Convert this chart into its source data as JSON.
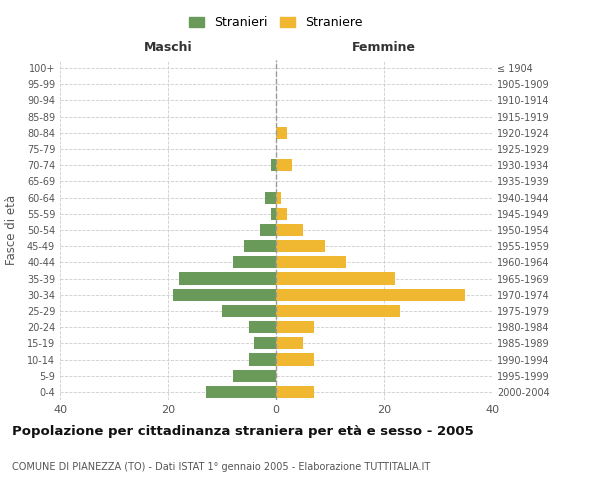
{
  "age_groups": [
    "100+",
    "95-99",
    "90-94",
    "85-89",
    "80-84",
    "75-79",
    "70-74",
    "65-69",
    "60-64",
    "55-59",
    "50-54",
    "45-49",
    "40-44",
    "35-39",
    "30-34",
    "25-29",
    "20-24",
    "15-19",
    "10-14",
    "5-9",
    "0-4"
  ],
  "birth_years": [
    "≤ 1904",
    "1905-1909",
    "1910-1914",
    "1915-1919",
    "1920-1924",
    "1925-1929",
    "1930-1934",
    "1935-1939",
    "1940-1944",
    "1945-1949",
    "1950-1954",
    "1955-1959",
    "1960-1964",
    "1965-1969",
    "1970-1974",
    "1975-1979",
    "1980-1984",
    "1985-1989",
    "1990-1994",
    "1995-1999",
    "2000-2004"
  ],
  "maschi": [
    0,
    0,
    0,
    0,
    0,
    0,
    1,
    0,
    2,
    1,
    3,
    6,
    8,
    18,
    19,
    10,
    5,
    4,
    5,
    8,
    13
  ],
  "femmine": [
    0,
    0,
    0,
    0,
    2,
    0,
    3,
    0,
    1,
    2,
    5,
    9,
    13,
    22,
    35,
    23,
    7,
    5,
    7,
    0,
    7
  ],
  "maschi_color": "#6a9a5a",
  "femmine_color": "#f0b830",
  "title": "Popolazione per cittadinanza straniera per età e sesso - 2005",
  "subtitle": "COMUNE DI PIANEZZA (TO) - Dati ISTAT 1° gennaio 2005 - Elaborazione TUTTITALIA.IT",
  "xlabel_left": "Maschi",
  "xlabel_right": "Femmine",
  "ylabel_left": "Fasce di età",
  "xlim": 40,
  "legend_stranieri": "Stranieri",
  "legend_straniere": "Straniere",
  "background_color": "#ffffff",
  "grid_color": "#cccccc",
  "bar_height": 0.75
}
